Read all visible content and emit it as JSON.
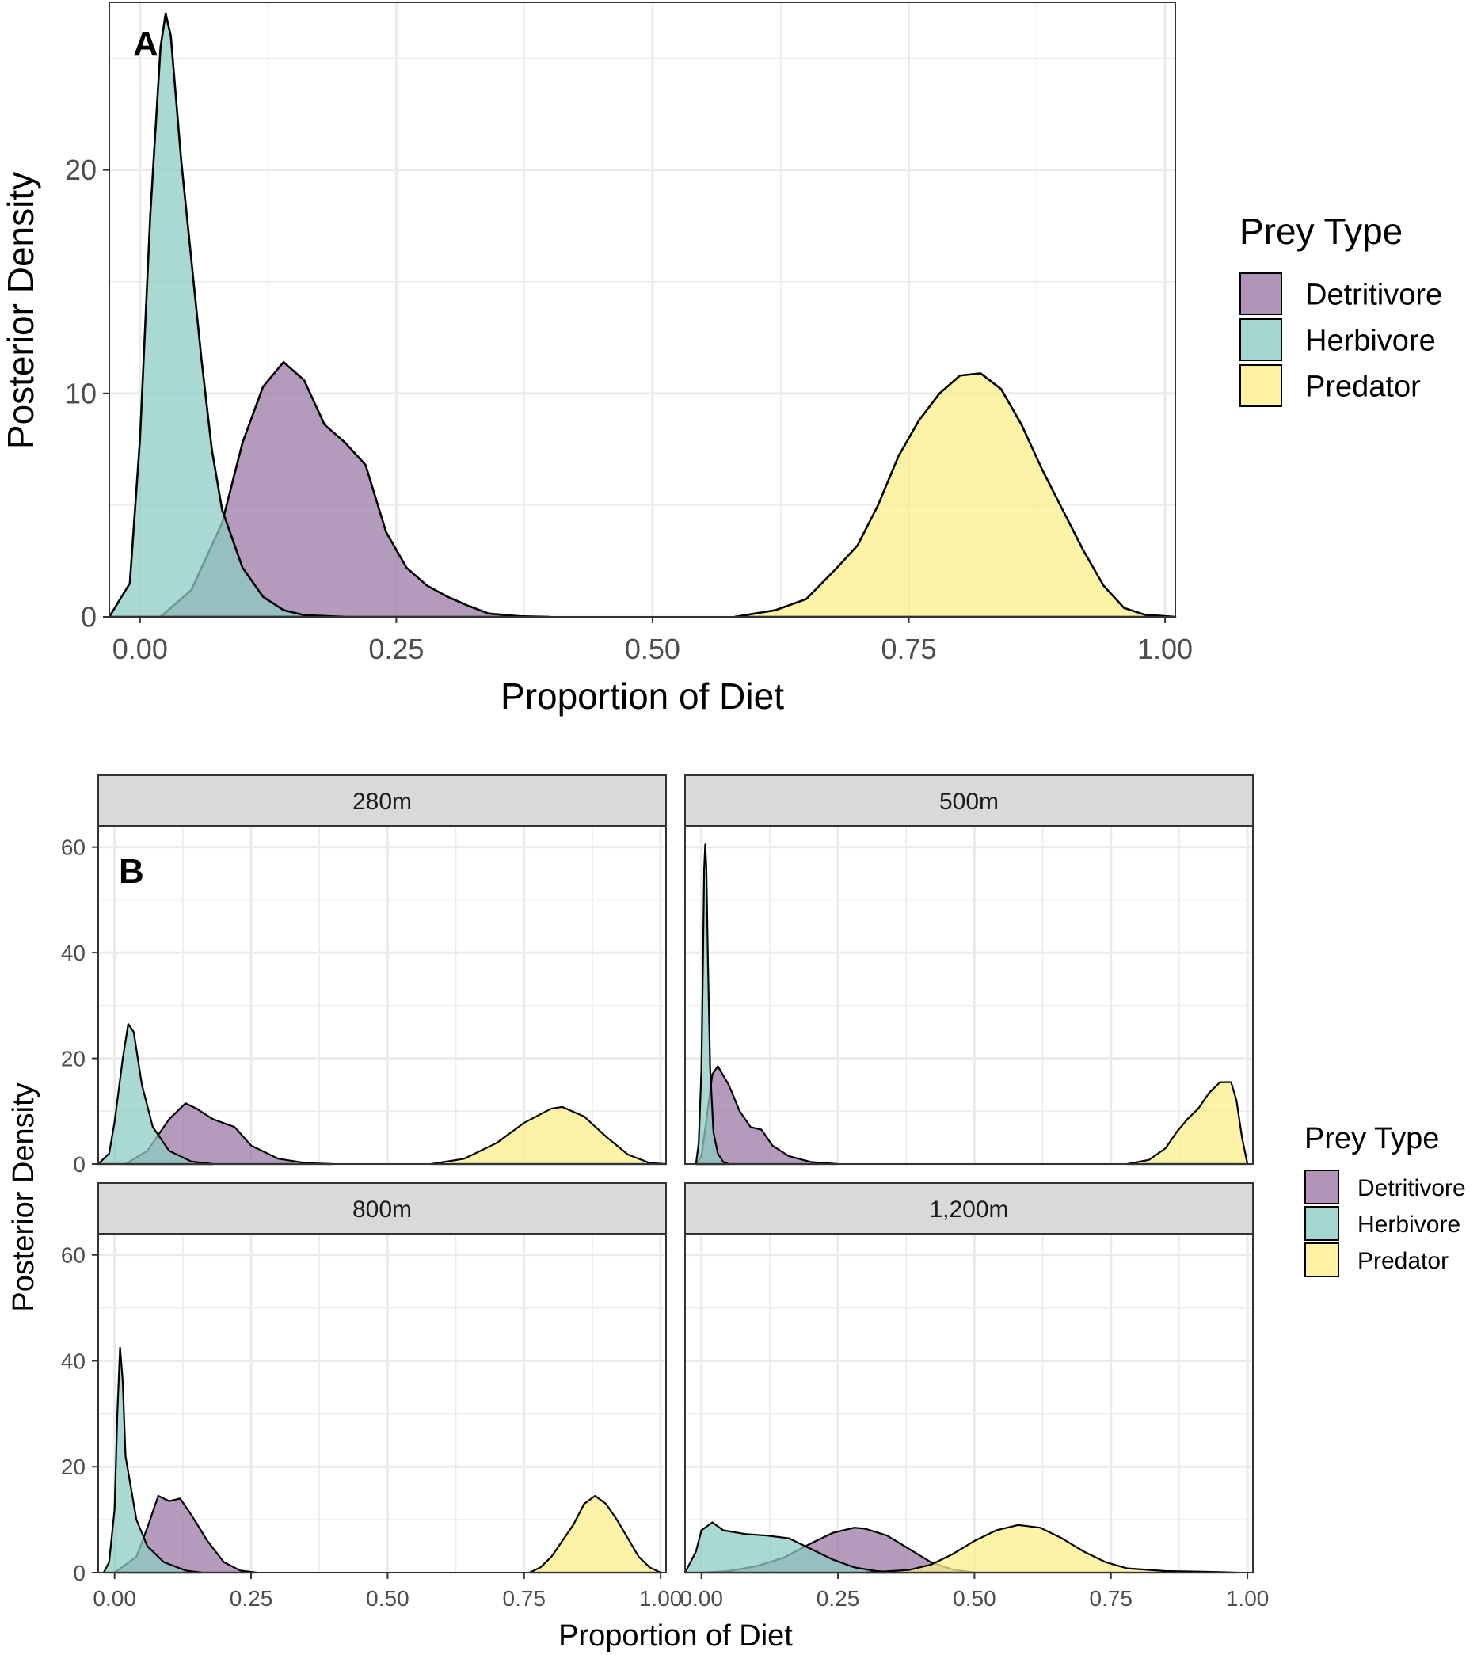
{
  "colors": {
    "Detritivore": "#9b79a6",
    "Herbivore": "#8ecbc4",
    "Predator": "#fbef8a",
    "grid": "#ebebeb",
    "strip": "#d9d9d9",
    "axis_text": "#4d4d4d",
    "outline": "#000000"
  },
  "chart_data": [
    {
      "type": "area",
      "panel_tag": "A",
      "xlabel": "Proportion of Diet",
      "ylabel": "Posterior Density",
      "xlim": [
        -0.03,
        1.01
      ],
      "ylim": [
        0,
        27.5
      ],
      "x_ticks": [
        0.0,
        0.25,
        0.5,
        0.75,
        1.0
      ],
      "x_tick_labels": [
        "0.00",
        "0.25",
        "0.50",
        "0.75",
        "1.00"
      ],
      "y_ticks": [
        0,
        10,
        20
      ],
      "y_tick_labels": [
        "0",
        "10",
        "20"
      ],
      "grid": true,
      "legend": {
        "title": "Prey Type",
        "position": "right",
        "entries": [
          "Detritivore",
          "Herbivore",
          "Predator"
        ]
      },
      "series": [
        {
          "name": "Detritivore",
          "points": [
            [
              0.02,
              0
            ],
            [
              0.05,
              1.2
            ],
            [
              0.08,
              4.2
            ],
            [
              0.1,
              7.8
            ],
            [
              0.12,
              10.3
            ],
            [
              0.14,
              11.4
            ],
            [
              0.16,
              10.6
            ],
            [
              0.18,
              8.6
            ],
            [
              0.2,
              7.8
            ],
            [
              0.22,
              6.8
            ],
            [
              0.24,
              3.8
            ],
            [
              0.26,
              2.2
            ],
            [
              0.28,
              1.4
            ],
            [
              0.3,
              0.9
            ],
            [
              0.32,
              0.5
            ],
            [
              0.34,
              0.15
            ],
            [
              0.37,
              0.03
            ],
            [
              0.4,
              0
            ]
          ]
        },
        {
          "name": "Herbivore",
          "points": [
            [
              -0.03,
              0
            ],
            [
              -0.01,
              1.5
            ],
            [
              0.0,
              8.0
            ],
            [
              0.01,
              18.0
            ],
            [
              0.02,
              25.5
            ],
            [
              0.025,
              27.0
            ],
            [
              0.03,
              26.0
            ],
            [
              0.04,
              20.5
            ],
            [
              0.06,
              11.5
            ],
            [
              0.07,
              7.5
            ],
            [
              0.08,
              4.8
            ],
            [
              0.1,
              2.2
            ],
            [
              0.12,
              0.9
            ],
            [
              0.14,
              0.3
            ],
            [
              0.16,
              0.08
            ],
            [
              0.2,
              0
            ]
          ]
        },
        {
          "name": "Predator",
          "points": [
            [
              0.58,
              0
            ],
            [
              0.62,
              0.3
            ],
            [
              0.65,
              0.8
            ],
            [
              0.68,
              2.2
            ],
            [
              0.7,
              3.2
            ],
            [
              0.72,
              5.0
            ],
            [
              0.74,
              7.2
            ],
            [
              0.76,
              8.8
            ],
            [
              0.78,
              10.0
            ],
            [
              0.8,
              10.8
            ],
            [
              0.82,
              10.9
            ],
            [
              0.84,
              10.2
            ],
            [
              0.86,
              8.6
            ],
            [
              0.88,
              6.6
            ],
            [
              0.9,
              4.8
            ],
            [
              0.92,
              3.0
            ],
            [
              0.94,
              1.4
            ],
            [
              0.96,
              0.4
            ],
            [
              0.98,
              0.1
            ],
            [
              1.01,
              0
            ]
          ]
        }
      ]
    },
    {
      "type": "area",
      "panel_tag": "B",
      "xlabel": "Proportion of Diet",
      "ylabel": "Posterior Density",
      "xlim": [
        -0.03,
        1.01
      ],
      "ylim": [
        0,
        64
      ],
      "x_ticks": [
        0.0,
        0.25,
        0.5,
        0.75,
        1.0
      ],
      "x_tick_labels": [
        "0.00",
        "0.25",
        "0.50",
        "0.75",
        "1.00"
      ],
      "y_ticks": [
        0,
        20,
        40,
        60
      ],
      "y_tick_labels": [
        "0",
        "20",
        "40",
        "60"
      ],
      "grid": true,
      "legend": {
        "title": "Prey Type",
        "position": "right",
        "entries": [
          "Detritivore",
          "Herbivore",
          "Predator"
        ]
      },
      "facets": [
        {
          "label": "280m",
          "series": [
            {
              "name": "Detritivore",
              "points": [
                [
                  0.02,
                  0
                ],
                [
                  0.06,
                  2.5
                ],
                [
                  0.1,
                  8.5
                ],
                [
                  0.13,
                  11.5
                ],
                [
                  0.15,
                  10.5
                ],
                [
                  0.18,
                  8.5
                ],
                [
                  0.22,
                  7.0
                ],
                [
                  0.25,
                  3.5
                ],
                [
                  0.3,
                  1.0
                ],
                [
                  0.35,
                  0.2
                ],
                [
                  0.4,
                  0
                ]
              ]
            },
            {
              "name": "Herbivore",
              "points": [
                [
                  -0.03,
                  0
                ],
                [
                  -0.01,
                  2.0
                ],
                [
                  0.0,
                  8.0
                ],
                [
                  0.015,
                  20.0
                ],
                [
                  0.025,
                  26.5
                ],
                [
                  0.035,
                  25.0
                ],
                [
                  0.05,
                  15.0
                ],
                [
                  0.07,
                  7.0
                ],
                [
                  0.1,
                  2.5
                ],
                [
                  0.14,
                  0.5
                ],
                [
                  0.18,
                  0
                ]
              ]
            },
            {
              "name": "Predator",
              "points": [
                [
                  0.58,
                  0
                ],
                [
                  0.64,
                  1.0
                ],
                [
                  0.7,
                  4.0
                ],
                [
                  0.75,
                  7.8
                ],
                [
                  0.8,
                  10.5
                ],
                [
                  0.82,
                  10.8
                ],
                [
                  0.86,
                  9.0
                ],
                [
                  0.9,
                  5.2
                ],
                [
                  0.94,
                  1.8
                ],
                [
                  0.98,
                  0.2
                ],
                [
                  1.01,
                  0
                ]
              ]
            }
          ]
        },
        {
          "label": "500m",
          "series": [
            {
              "name": "Detritivore",
              "points": [
                [
                  -0.01,
                  0
                ],
                [
                  0.0,
                  1.5
                ],
                [
                  0.01,
                  9.0
                ],
                [
                  0.02,
                  17.0
                ],
                [
                  0.03,
                  18.5
                ],
                [
                  0.05,
                  15.0
                ],
                [
                  0.07,
                  10.0
                ],
                [
                  0.09,
                  7.0
                ],
                [
                  0.11,
                  6.5
                ],
                [
                  0.13,
                  3.5
                ],
                [
                  0.16,
                  1.5
                ],
                [
                  0.2,
                  0.4
                ],
                [
                  0.25,
                  0
                ]
              ]
            },
            {
              "name": "Herbivore",
              "points": [
                [
                  -0.01,
                  0
                ],
                [
                  -0.005,
                  4.0
                ],
                [
                  0.0,
                  18.0
                ],
                [
                  0.003,
                  40.0
                ],
                [
                  0.005,
                  56.0
                ],
                [
                  0.007,
                  60.5
                ],
                [
                  0.009,
                  56.0
                ],
                [
                  0.012,
                  38.0
                ],
                [
                  0.016,
                  18.0
                ],
                [
                  0.022,
                  6.0
                ],
                [
                  0.03,
                  2.0
                ],
                [
                  0.04,
                  0.4
                ],
                [
                  0.05,
                  0
                ]
              ]
            },
            {
              "name": "Predator",
              "points": [
                [
                  0.78,
                  0
                ],
                [
                  0.82,
                  0.8
                ],
                [
                  0.85,
                  3.0
                ],
                [
                  0.87,
                  6.0
                ],
                [
                  0.89,
                  8.5
                ],
                [
                  0.91,
                  10.5
                ],
                [
                  0.93,
                  13.5
                ],
                [
                  0.95,
                  15.5
                ],
                [
                  0.97,
                  15.5
                ],
                [
                  0.98,
                  12.0
                ],
                [
                  0.99,
                  5.0
                ],
                [
                  1.0,
                  0
                ]
              ]
            }
          ]
        },
        {
          "label": "800m",
          "series": [
            {
              "name": "Detritivore",
              "points": [
                [
                  0.0,
                  0
                ],
                [
                  0.04,
                  3.0
                ],
                [
                  0.06,
                  8.5
                ],
                [
                  0.08,
                  14.5
                ],
                [
                  0.1,
                  13.5
                ],
                [
                  0.12,
                  14.0
                ],
                [
                  0.14,
                  11.0
                ],
                [
                  0.17,
                  6.0
                ],
                [
                  0.2,
                  2.0
                ],
                [
                  0.23,
                  0.4
                ],
                [
                  0.26,
                  0
                ]
              ]
            },
            {
              "name": "Herbivore",
              "points": [
                [
                  -0.02,
                  0
                ],
                [
                  -0.01,
                  2.0
                ],
                [
                  0.0,
                  12.0
                ],
                [
                  0.005,
                  30.0
                ],
                [
                  0.01,
                  42.5
                ],
                [
                  0.015,
                  36.0
                ],
                [
                  0.02,
                  22.0
                ],
                [
                  0.04,
                  10.0
                ],
                [
                  0.06,
                  5.0
                ],
                [
                  0.09,
                  2.0
                ],
                [
                  0.13,
                  0.4
                ],
                [
                  0.16,
                  0
                ]
              ]
            },
            {
              "name": "Predator",
              "points": [
                [
                  0.76,
                  0
                ],
                [
                  0.78,
                  1.0
                ],
                [
                  0.8,
                  3.0
                ],
                [
                  0.82,
                  6.0
                ],
                [
                  0.84,
                  9.0
                ],
                [
                  0.86,
                  13.0
                ],
                [
                  0.88,
                  14.5
                ],
                [
                  0.9,
                  13.0
                ],
                [
                  0.92,
                  10.0
                ],
                [
                  0.94,
                  6.5
                ],
                [
                  0.96,
                  3.0
                ],
                [
                  0.98,
                  1.0
                ],
                [
                  1.0,
                  0
                ]
              ]
            }
          ]
        },
        {
          "label": "1,200m",
          "series": [
            {
              "name": "Detritivore",
              "points": [
                [
                  0.0,
                  0
                ],
                [
                  0.05,
                  0.3
                ],
                [
                  0.1,
                  1.2
                ],
                [
                  0.15,
                  2.8
                ],
                [
                  0.2,
                  5.5
                ],
                [
                  0.24,
                  7.5
                ],
                [
                  0.28,
                  8.5
                ],
                [
                  0.3,
                  8.3
                ],
                [
                  0.34,
                  7.0
                ],
                [
                  0.38,
                  4.5
                ],
                [
                  0.42,
                  2.0
                ],
                [
                  0.46,
                  0.6
                ],
                [
                  0.5,
                  0
                ]
              ]
            },
            {
              "name": "Herbivore",
              "points": [
                [
                  -0.03,
                  0
                ],
                [
                  -0.01,
                  4.0
                ],
                [
                  0.0,
                  8.0
                ],
                [
                  0.02,
                  9.5
                ],
                [
                  0.04,
                  8.0
                ],
                [
                  0.08,
                  7.3
                ],
                [
                  0.12,
                  7.0
                ],
                [
                  0.16,
                  6.5
                ],
                [
                  0.2,
                  4.5
                ],
                [
                  0.24,
                  2.5
                ],
                [
                  0.28,
                  1.0
                ],
                [
                  0.32,
                  0.3
                ],
                [
                  0.36,
                  0
                ]
              ]
            },
            {
              "name": "Predator",
              "points": [
                [
                  0.3,
                  0
                ],
                [
                  0.38,
                  0.5
                ],
                [
                  0.42,
                  1.5
                ],
                [
                  0.46,
                  3.5
                ],
                [
                  0.5,
                  6.0
                ],
                [
                  0.54,
                  8.0
                ],
                [
                  0.58,
                  9.0
                ],
                [
                  0.62,
                  8.5
                ],
                [
                  0.66,
                  6.5
                ],
                [
                  0.7,
                  4.0
                ],
                [
                  0.74,
                  2.0
                ],
                [
                  0.78,
                  0.8
                ],
                [
                  0.85,
                  0.3
                ],
                [
                  0.95,
                  0.1
                ],
                [
                  0.98,
                  0
                ]
              ]
            }
          ]
        }
      ]
    }
  ]
}
